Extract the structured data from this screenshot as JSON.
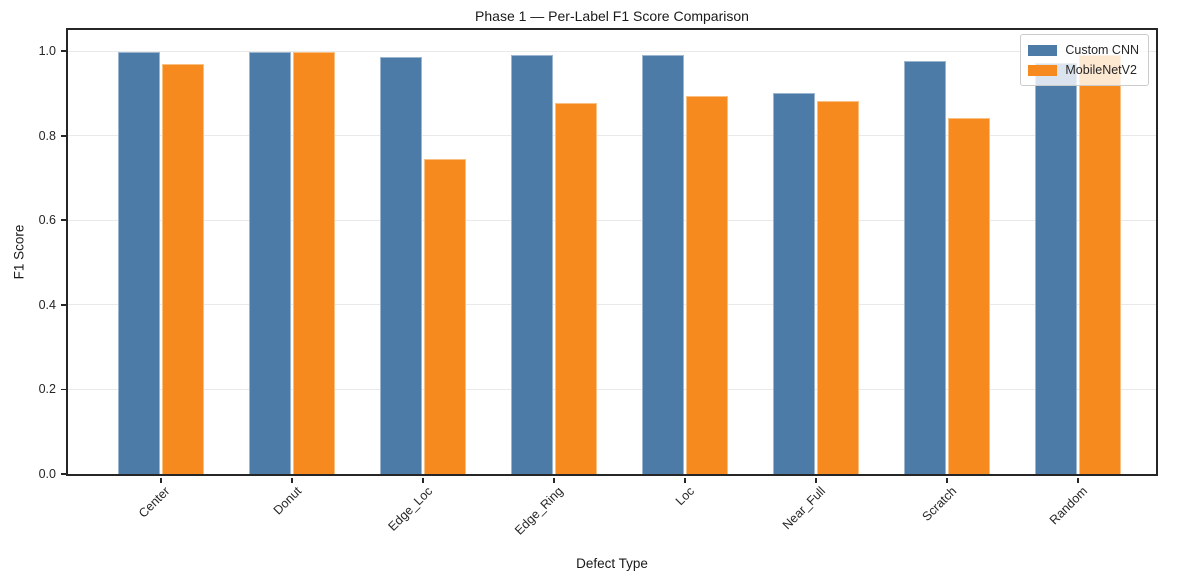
{
  "chart_data": {
    "type": "bar",
    "title": "Phase 1 — Per-Label F1 Score Comparison",
    "xlabel": "Defect Type",
    "ylabel": "F1 Score",
    "categories": [
      "Center",
      "Donut",
      "Edge_Loc",
      "Edge_Ring",
      "Loc",
      "Near_Full",
      "Scratch",
      "Random"
    ],
    "series": [
      {
        "name": "Custom CNN",
        "color": "#4C7BA8",
        "values": [
          0.998,
          0.999,
          0.987,
          0.992,
          0.992,
          0.901,
          0.976,
          0.973
        ]
      },
      {
        "name": "MobileNetV2",
        "color": "#F68A1E",
        "values": [
          0.97,
          0.997,
          0.745,
          0.877,
          0.893,
          0.883,
          0.843,
          0.99
        ]
      }
    ],
    "ylim": [
      0,
      1.05
    ],
    "yticks": [
      0.0,
      0.2,
      0.4,
      0.6,
      0.8,
      1.0
    ],
    "ytick_labels": [
      "0.0",
      "0.2",
      "0.4",
      "0.6",
      "0.8",
      "1.0"
    ],
    "grid": true,
    "grid_color": "#e9e9e9",
    "spine_color": "#262626",
    "legend_position": "upper right",
    "x_tick_rotation_deg": 45
  }
}
